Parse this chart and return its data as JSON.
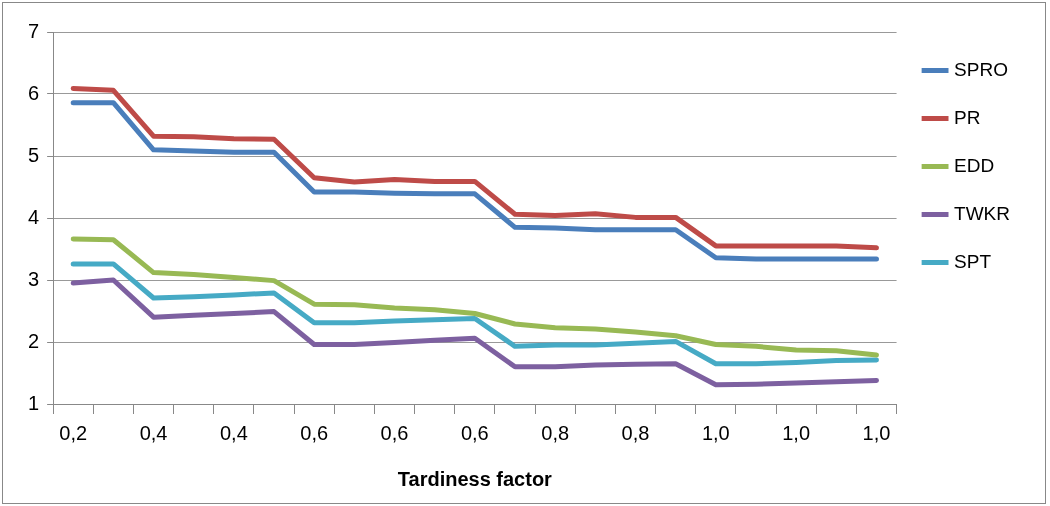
{
  "chart_data": {
    "type": "line",
    "xlabel": "Tardiness factor",
    "categories": [
      "0,2",
      null,
      "0,4",
      null,
      "0,4",
      null,
      "0,6",
      null,
      "0,6",
      null,
      "0,6",
      null,
      "0,8",
      null,
      "0,8",
      null,
      "1,0",
      null,
      "1,0",
      null,
      "1,0"
    ],
    "series": [
      {
        "name": "SPRO",
        "color": "#4a7ebb",
        "values": [
          5.86,
          5.86,
          5.1,
          5.08,
          5.06,
          5.06,
          4.42,
          4.42,
          4.4,
          4.39,
          4.39,
          3.85,
          3.84,
          3.81,
          3.81,
          3.81,
          3.36,
          3.34,
          3.34,
          3.34,
          3.34
        ]
      },
      {
        "name": "PR",
        "color": "#be4b48",
        "values": [
          6.09,
          6.06,
          5.32,
          5.31,
          5.28,
          5.27,
          4.65,
          4.58,
          4.62,
          4.59,
          4.59,
          4.06,
          4.04,
          4.07,
          4.01,
          4.01,
          3.55,
          3.55,
          3.55,
          3.55,
          3.52
        ]
      },
      {
        "name": "EDD",
        "color": "#98b954",
        "values": [
          3.66,
          3.65,
          3.12,
          3.09,
          3.04,
          2.99,
          2.61,
          2.6,
          2.55,
          2.52,
          2.46,
          2.29,
          2.23,
          2.21,
          2.16,
          2.1,
          1.96,
          1.93,
          1.87,
          1.86,
          1.79
        ]
      },
      {
        "name": "TWKR",
        "color": "#7d60a0",
        "values": [
          2.95,
          3.0,
          2.4,
          2.43,
          2.46,
          2.49,
          1.96,
          1.96,
          1.99,
          2.03,
          2.06,
          1.6,
          1.6,
          1.63,
          1.64,
          1.65,
          1.31,
          1.32,
          1.34,
          1.36,
          1.38
        ]
      },
      {
        "name": "SPT",
        "color": "#46aac5",
        "values": [
          3.26,
          3.26,
          2.71,
          2.73,
          2.76,
          2.79,
          2.31,
          2.31,
          2.34,
          2.36,
          2.38,
          1.93,
          1.95,
          1.95,
          1.98,
          2.01,
          1.65,
          1.65,
          1.67,
          1.7,
          1.71
        ]
      }
    ],
    "ylim": [
      1,
      7
    ],
    "yticks": [
      1,
      2,
      3,
      4,
      5,
      6,
      7
    ],
    "grid": "y",
    "legend": "right",
    "marker": "none",
    "line_style": "solid"
  }
}
